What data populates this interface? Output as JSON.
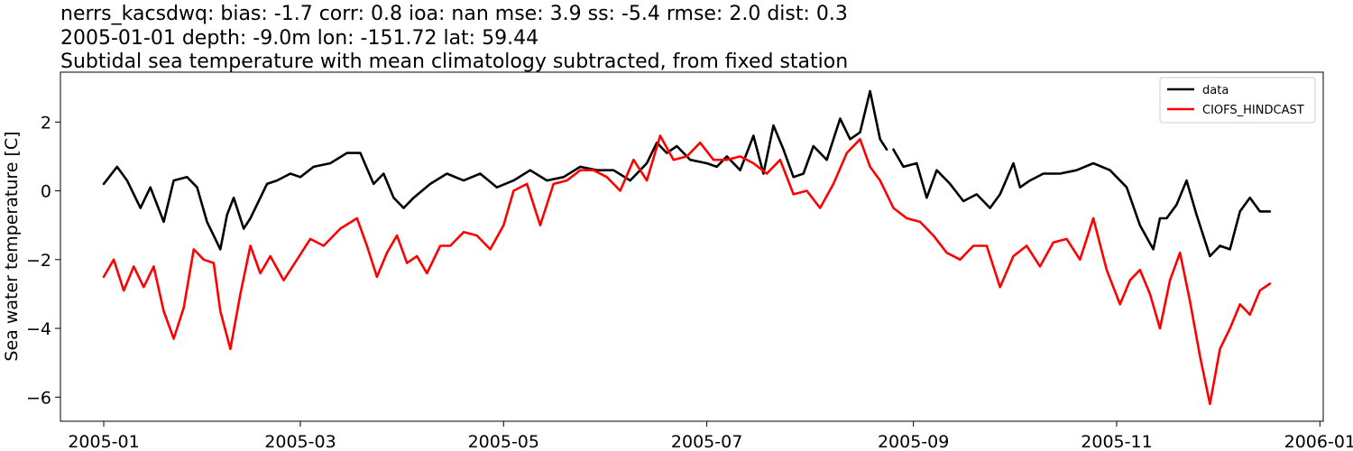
{
  "chart_data": {
    "type": "line",
    "title_lines": [
      "nerrs_kacsdwq: bias: -1.7  corr: 0.8  ioa: nan  mse: 3.9  ss: -5.4  rmse: 2.0  dist: 0.3",
      "2005-01-01 depth: -9.0m lon: -151.72 lat: 59.44",
      "Subtidal sea temperature with mean climatology subtracted, from fixed station"
    ],
    "xlabel": "",
    "ylabel": "Sea water temperature [C]",
    "xlim": [
      "2004-12-19",
      "2006-01-02"
    ],
    "ylim": [
      -6.7,
      3.45
    ],
    "x_ticks": [
      "2005-01-01",
      "2005-03-01",
      "2005-05-01",
      "2005-07-01",
      "2005-09-01",
      "2005-11-01",
      "2006-01-01"
    ],
    "x_tick_labels": [
      "2005-01",
      "2005-03",
      "2005-05",
      "2005-07",
      "2005-09",
      "2005-11",
      "2006-01"
    ],
    "y_ticks": [
      -6,
      -4,
      -2,
      0,
      2
    ],
    "y_tick_labels": [
      "−6",
      "−4",
      "−2",
      "0",
      "2"
    ],
    "legend_position": "top-right",
    "series": [
      {
        "name": "data",
        "color": "#000000",
        "x": [
          "2005-01-01",
          "2005-01-05",
          "2005-01-08",
          "2005-01-12",
          "2005-01-15",
          "2005-01-19",
          "2005-01-22",
          "2005-01-26",
          "2005-01-29",
          "2005-02-01",
          "2005-02-05",
          "2005-02-07",
          "2005-02-09",
          "2005-02-12",
          "2005-02-14",
          "2005-02-19",
          "2005-02-22",
          "2005-02-26",
          "2005-03-01",
          "2005-03-05",
          "2005-03-10",
          "2005-03-15",
          "2005-03-19",
          "2005-03-23",
          "2005-03-26",
          "2005-03-29",
          "2005-04-01",
          "2005-04-04",
          "2005-04-09",
          "2005-04-14",
          "2005-04-19",
          "2005-04-24",
          "2005-04-29",
          "2005-05-04",
          "2005-05-09",
          "2005-05-14",
          "2005-05-19",
          "2005-05-24",
          "2005-05-29",
          "2005-06-03",
          "2005-06-08",
          "2005-06-13",
          "2005-06-16",
          "2005-06-19",
          "2005-06-22",
          "2005-06-26",
          "2005-07-01",
          "2005-07-04",
          "2005-07-07",
          "2005-07-11",
          "2005-07-15",
          "2005-07-18",
          "2005-07-21",
          "2005-07-24",
          "2005-07-27",
          "2005-07-30",
          "2005-08-02",
          "2005-08-06",
          "2005-08-10",
          "2005-08-13",
          "2005-08-16",
          "2005-08-19",
          "2005-08-22",
          "2005-08-24",
          null,
          "2005-08-26",
          "2005-08-29",
          "2005-09-02",
          "2005-09-05",
          "2005-09-08",
          "2005-09-12",
          "2005-09-16",
          "2005-09-20",
          "2005-09-24",
          "2005-09-27",
          "2005-10-01",
          "2005-10-03",
          "2005-10-06",
          "2005-10-10",
          "2005-10-15",
          "2005-10-20",
          "2005-10-25",
          "2005-10-30",
          "2005-11-04",
          "2005-11-08",
          "2005-11-12",
          "2005-11-14",
          "2005-11-16",
          "2005-11-19",
          "2005-11-22",
          "2005-11-25",
          "2005-11-29",
          "2005-12-02",
          "2005-12-05",
          "2005-12-08",
          "2005-12-11",
          "2005-12-14",
          "2005-12-17"
        ],
        "y": [
          0.2,
          0.7,
          0.3,
          -0.5,
          0.1,
          -0.9,
          0.3,
          0.4,
          0.1,
          -0.9,
          -1.7,
          -0.7,
          -0.2,
          -1.1,
          -0.8,
          0.2,
          0.3,
          0.5,
          0.4,
          0.7,
          0.8,
          1.1,
          1.1,
          0.2,
          0.5,
          -0.2,
          -0.5,
          -0.2,
          0.2,
          0.5,
          0.3,
          0.5,
          0.1,
          0.3,
          0.6,
          0.3,
          0.4,
          0.7,
          0.6,
          0.6,
          0.3,
          0.8,
          1.4,
          1.1,
          1.3,
          0.9,
          0.8,
          0.7,
          1.0,
          0.6,
          1.6,
          0.5,
          1.9,
          1.2,
          0.4,
          0.5,
          1.3,
          0.9,
          2.1,
          1.5,
          1.7,
          2.9,
          1.5,
          1.2,
          null,
          1.2,
          0.7,
          0.8,
          -0.2,
          0.6,
          0.2,
          -0.3,
          -0.1,
          -0.5,
          -0.1,
          0.8,
          0.1,
          0.3,
          0.5,
          0.5,
          0.6,
          0.8,
          0.6,
          0.1,
          -1.0,
          -1.7,
          -0.8,
          -0.8,
          -0.4,
          0.3,
          -0.7,
          -1.9,
          -1.6,
          -1.7,
          -0.6,
          -0.2,
          -0.6,
          -0.6
        ]
      },
      {
        "name": "CIOFS_HINDCAST",
        "color": "#ff0000",
        "x": [
          "2005-01-01",
          "2005-01-04",
          "2005-01-07",
          "2005-01-10",
          "2005-01-13",
          "2005-01-16",
          "2005-01-19",
          "2005-01-22",
          "2005-01-25",
          "2005-01-28",
          "2005-01-31",
          "2005-02-03",
          "2005-02-05",
          "2005-02-08",
          "2005-02-11",
          "2005-02-14",
          "2005-02-17",
          "2005-02-20",
          "2005-02-24",
          "2005-02-28",
          "2005-03-04",
          "2005-03-08",
          "2005-03-13",
          "2005-03-18",
          "2005-03-21",
          "2005-03-24",
          "2005-03-27",
          "2005-03-30",
          "2005-04-02",
          "2005-04-05",
          "2005-04-08",
          "2005-04-12",
          "2005-04-15",
          "2005-04-19",
          "2005-04-23",
          "2005-04-27",
          "2005-05-01",
          "2005-05-04",
          "2005-05-08",
          "2005-05-12",
          "2005-05-16",
          "2005-05-20",
          "2005-05-24",
          "2005-05-28",
          "2005-06-01",
          "2005-06-05",
          "2005-06-09",
          "2005-06-13",
          "2005-06-17",
          "2005-06-21",
          "2005-06-25",
          "2005-06-29",
          "2005-07-03",
          "2005-07-07",
          "2005-07-11",
          "2005-07-15",
          "2005-07-19",
          "2005-07-23",
          "2005-07-27",
          "2005-07-31",
          "2005-08-04",
          "2005-08-08",
          "2005-08-12",
          "2005-08-16",
          "2005-08-19",
          "2005-08-22",
          "2005-08-26",
          "2005-08-30",
          "2005-09-03",
          "2005-09-07",
          "2005-09-11",
          "2005-09-15",
          "2005-09-19",
          "2005-09-23",
          "2005-09-27",
          "2005-10-01",
          "2005-10-05",
          "2005-10-09",
          "2005-10-13",
          "2005-10-17",
          "2005-10-21",
          "2005-10-25",
          "2005-10-29",
          "2005-11-02",
          "2005-11-05",
          "2005-11-08",
          "2005-11-11",
          "2005-11-14",
          "2005-11-17",
          "2005-11-20",
          "2005-11-23",
          "2005-11-26",
          "2005-11-29",
          "2005-12-02",
          "2005-12-05",
          "2005-12-08",
          "2005-12-11",
          "2005-12-14",
          "2005-12-17"
        ],
        "y": [
          -2.5,
          -2.0,
          -2.9,
          -2.2,
          -2.8,
          -2.2,
          -3.5,
          -4.3,
          -3.4,
          -1.7,
          -2.0,
          -2.1,
          -3.5,
          -4.6,
          -3.0,
          -1.6,
          -2.4,
          -1.9,
          -2.6,
          -2.0,
          -1.4,
          -1.6,
          -1.1,
          -0.8,
          -1.6,
          -2.5,
          -1.8,
          -1.3,
          -2.1,
          -1.9,
          -2.4,
          -1.6,
          -1.6,
          -1.2,
          -1.3,
          -1.7,
          -1.0,
          0.0,
          0.2,
          -1.0,
          0.2,
          0.3,
          0.6,
          0.6,
          0.4,
          0.0,
          0.9,
          0.3,
          1.6,
          0.9,
          1.0,
          1.4,
          0.9,
          0.9,
          1.0,
          0.8,
          0.5,
          0.9,
          -0.1,
          0.0,
          -0.5,
          0.2,
          1.1,
          1.5,
          0.7,
          0.3,
          -0.5,
          -0.8,
          -0.9,
          -1.3,
          -1.8,
          -2.0,
          -1.6,
          -1.6,
          -2.8,
          -1.9,
          -1.6,
          -2.2,
          -1.5,
          -1.4,
          -2.0,
          -0.8,
          -2.3,
          -3.3,
          -2.6,
          -2.3,
          -3.0,
          -4.0,
          -2.6,
          -1.8,
          -3.2,
          -4.8,
          -6.2,
          -4.6,
          -4.0,
          -3.3,
          -3.6,
          -2.9,
          -2.7
        ]
      }
    ]
  }
}
